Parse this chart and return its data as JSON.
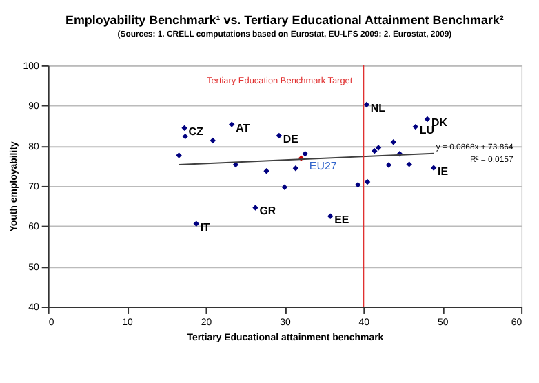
{
  "chart_data": {
    "type": "scatter",
    "title": "Employability Benchmark¹ vs. Tertiary Educational Attainment Benchmark²",
    "subtitle": "(Sources: 1. CRELL computations based on Eurostat, EU-LFS 2009; 2. Eurostat, 2009)",
    "xlabel": "Tertiary Educational attainment benchmark",
    "ylabel": "Youth employability",
    "xlim": [
      0,
      60
    ],
    "xticks": [
      0,
      10,
      20,
      30,
      40,
      50,
      60
    ],
    "ylim": [
      40,
      100
    ],
    "yticks": [
      40,
      50,
      60,
      70,
      80,
      90,
      100
    ],
    "grid": "y",
    "marker": "diamond",
    "series": [
      {
        "color": "#000080",
        "x": [
          17.3,
          17.4,
          20.9,
          16.6,
          23.3,
          29.3,
          23.8,
          27.7,
          30.0,
          26.3,
          18.8,
          40.4,
          48.1,
          46.6,
          43.8,
          41.9,
          41.4,
          44.6,
          32.6,
          31.4,
          43.2,
          45.8,
          48.9,
          39.3,
          40.5,
          35.8
        ],
        "values": [
          84.4,
          82.3,
          81.3,
          77.6,
          85.3,
          82.5,
          75.3,
          73.7,
          69.7,
          64.6,
          60.6,
          90.2,
          86.6,
          84.7,
          80.9,
          79.5,
          78.7,
          78.0,
          78.0,
          74.4,
          75.2,
          75.4,
          74.5,
          70.3,
          71.0,
          62.5
        ]
      },
      {
        "name": "EU27",
        "color": "#cc0000",
        "x": [
          32.1
        ],
        "values": [
          76.9
        ]
      },
      {
        "type": "line",
        "color": "#404040",
        "marker": "none",
        "line_style": "solid",
        "x": [
          16.6,
          48.9
        ],
        "values": [
          75.3,
          78.1
        ]
      }
    ],
    "ref_lines": [
      {
        "axis": "x",
        "value": 40,
        "label": "Tertiary Education Benchmark Target",
        "color": "#e03030"
      }
    ],
    "annotations": [
      {
        "text": "CZ",
        "x": 17.3,
        "y": 84.4
      },
      {
        "text": "AT",
        "x": 23.3,
        "y": 85.3
      },
      {
        "text": "DE",
        "x": 29.3,
        "y": 82.5
      },
      {
        "text": "GR",
        "x": 26.3,
        "y": 64.6
      },
      {
        "text": "IT",
        "x": 18.8,
        "y": 60.6
      },
      {
        "text": "NL",
        "x": 40.4,
        "y": 90.2
      },
      {
        "text": "DK",
        "x": 48.1,
        "y": 86.6
      },
      {
        "text": "LU",
        "x": 46.6,
        "y": 84.7
      },
      {
        "text": "IE",
        "x": 48.9,
        "y": 74.5
      },
      {
        "text": "EE",
        "x": 35.8,
        "y": 62.5
      },
      "y = 0.0868x + 73.864",
      "R² = 0.0157"
    ]
  }
}
